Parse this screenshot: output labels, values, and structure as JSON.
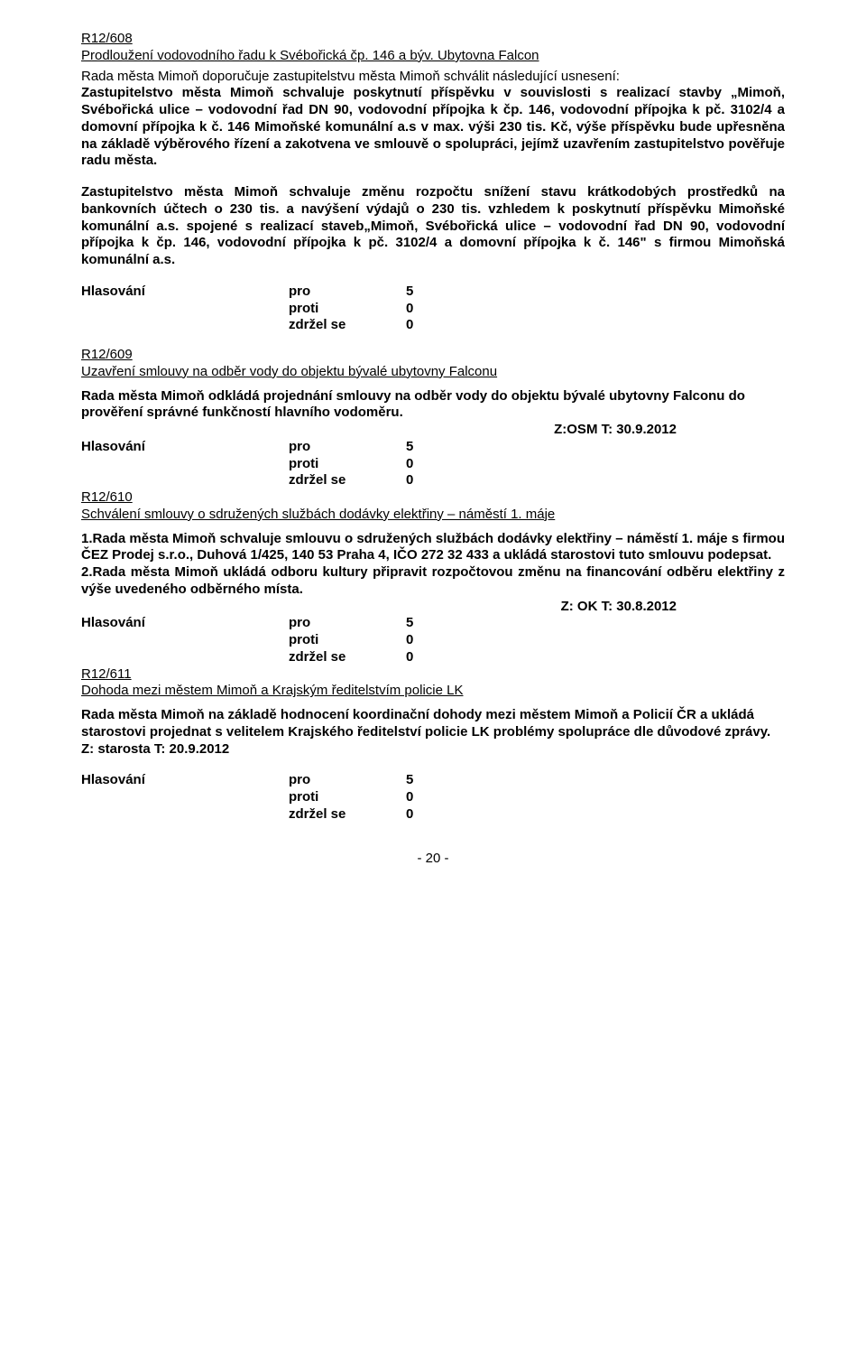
{
  "doc": {
    "page_number": "- 20 -"
  },
  "r608": {
    "number": "R12/608",
    "title": "Prodloužení vodovodního řadu k Svébořická čp. 146 a býv. Ubytovna Falcon",
    "para1": "Rada města Mimoň doporučuje zastupitelstvu města Mimoň schválit následující usnesení:",
    "para2": "Zastupitelstvo města Mimoň schvaluje poskytnutí příspěvku v souvislosti s realizací stavby „Mimoň, Svébořická ulice – vodovodní řad DN 90, vodovodní přípojka k čp. 146, vodovodní přípojka k pč. 3102/4 a domovní přípojka k č. 146 Mimoňské komunální a.s v max. výši 230 tis. Kč, výše příspěvku bude upřesněna na základě výběrového řízení a zakotvena ve smlouvě o spolupráci, jejímž uzavřením zastupitelstvo pověřuje radu města.",
    "para3": "Zastupitelstvo města Mimoň schvaluje změnu rozpočtu snížení stavu krátkodobých prostředků na bankovních účtech o 230 tis. a navýšení výdajů o 230 tis. vzhledem k poskytnutí příspěvku Mimoňské komunální a.s. spojené s realizací staveb„Mimoň, Svébořická ulice – vodovodní řad DN 90, vodovodní přípojka k čp. 146, vodovodní přípojka k pč. 3102/4 a domovní přípojka k č. 146\" s firmou Mimoňská komunální a.s."
  },
  "r609": {
    "number": "R12/609",
    "title": "Uzavření smlouvy na odběr vody do objektu bývalé ubytovny Falconu",
    "para": "Rada města Mimoň odkládá projednání smlouvy na odběr vody do objektu bývalé ubytovny Falconu do prověření správné funkčností hlavního vodoměru.",
    "note": "Z:OSM  T: 30.9.2012"
  },
  "r610": {
    "number": "R12/610",
    "title": "Schválení smlouvy o sdružených službách dodávky elektřiny – náměstí 1. máje",
    "para1": "1.Rada města Mimoň schvaluje smlouvu o sdružených službách dodávky elektřiny – náměstí 1. máje s firmou ČEZ Prodej s.r.o., Duhová 1/425, 140 53 Praha 4, IČO 272 32 433 a ukládá starostovi tuto smlouvu podepsat.",
    "para2": "2.Rada města Mimoň ukládá odboru kultury připravit rozpočtovou změnu na financování odběru elektřiny z výše uvedeného odběrného místa.",
    "note": "Z: OK  T: 30.8.2012"
  },
  "r611": {
    "number": "R12/611",
    "title": "Dohoda mezi městem Mimoň a Krajským ředitelstvím policie LK",
    "para": "Rada města Mimoň na základě hodnocení koordinační dohody mezi městem Mimoň a Policií ČR  a ukládá starostovi projednat s velitelem Krajského ředitelství policie LK problémy spolupráce dle důvodové zprávy.        Z: starosta  T: 20.9.2012"
  },
  "vote": {
    "label": "Hlasování",
    "pro_label": "pro",
    "pro_count": "5",
    "proti_label": "proti",
    "proti_count": "0",
    "zdrzel_label": "zdržel se",
    "zdrzel_count": "0"
  }
}
